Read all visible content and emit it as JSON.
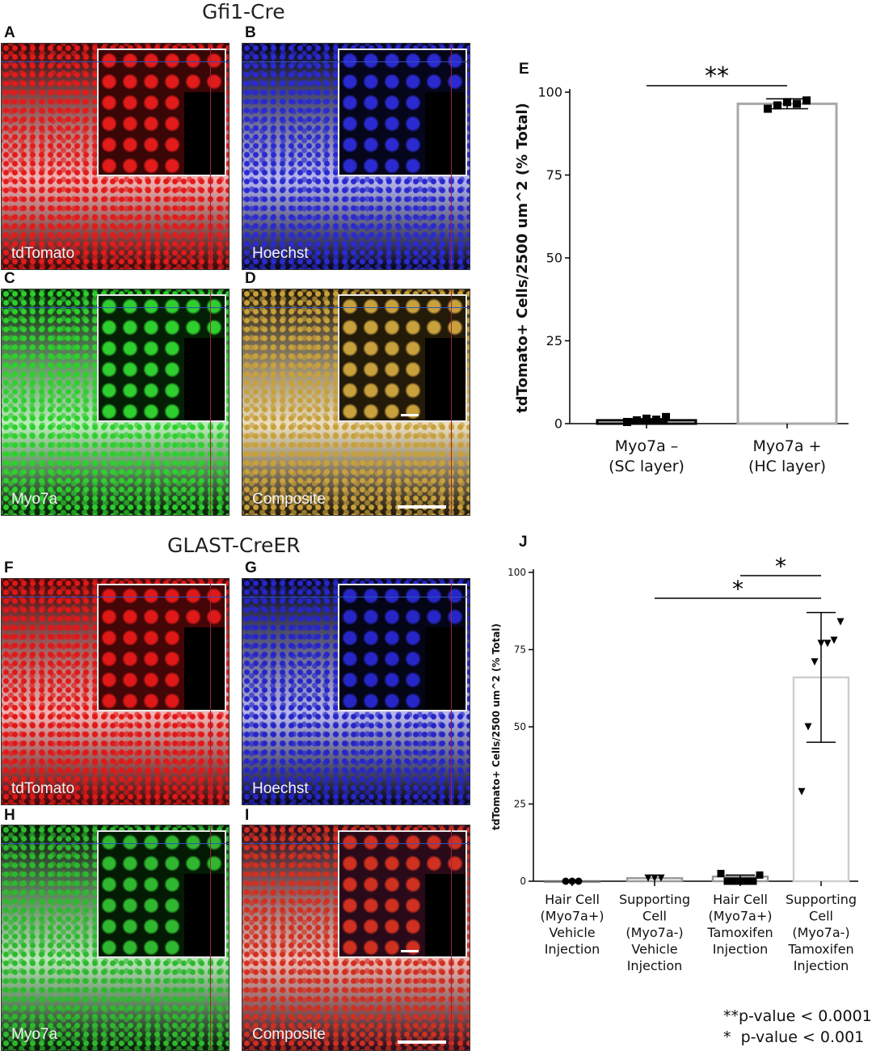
{
  "figure": {
    "top_title": "Gfi1-Cre",
    "bottom_title": "GLAST-CreER",
    "panels_top": [
      {
        "letter": "A",
        "label": "tdTomato",
        "color": "#e21b1b",
        "bg": "#3a0606",
        "scalebar": false
      },
      {
        "letter": "B",
        "label": "Hoechst",
        "color": "#2a2ad0",
        "bg": "#05051c",
        "scalebar": false
      },
      {
        "letter": "C",
        "label": "Myo7a",
        "color": "#2ecf2e",
        "bg": "#042004",
        "scalebar": false
      },
      {
        "letter": "D",
        "label": "Composite",
        "color": "#c8a03c",
        "bg": "#231a08",
        "scalebar": true
      }
    ],
    "panels_bottom": [
      {
        "letter": "F",
        "label": "tdTomato",
        "color": "#e01818",
        "bg": "#440606",
        "scalebar": false
      },
      {
        "letter": "G",
        "label": "Hoechst",
        "color": "#2626c8",
        "bg": "#050518",
        "scalebar": false
      },
      {
        "letter": "H",
        "label": "Myo7a",
        "color": "#2fb82f",
        "bg": "#031a03",
        "scalebar": false
      },
      {
        "letter": "I",
        "label": "Composite",
        "color": "#d03020",
        "bg": "#2a0a18",
        "scalebar": true
      }
    ],
    "pvalue_legend": [
      "**p-value < 0.0001",
      "*  p-value < 0.001"
    ]
  },
  "chart_data": [
    {
      "panel": "E",
      "type": "bar",
      "ylabel": "tdTomato+ Cells/2500 um^2 (% Total)",
      "ylim": [
        0,
        100
      ],
      "yticks": [
        0,
        25,
        50,
        75,
        100
      ],
      "categories": [
        [
          "Myo7a –",
          "(SC layer)"
        ],
        [
          "Myo7a +",
          "(HC layer)"
        ]
      ],
      "values": [
        1,
        96.5
      ],
      "errors": [
        0.5,
        1.5
      ],
      "points": [
        [
          0.5,
          1,
          1.5,
          1.2,
          2
        ],
        [
          95,
          96,
          97,
          96.5,
          97.5
        ]
      ],
      "bar_colors": [
        "#000000",
        "#a8a8a8"
      ],
      "significance": [
        {
          "from": 0,
          "to": 1,
          "label": "**"
        }
      ]
    },
    {
      "panel": "J",
      "type": "bar",
      "ylabel": "tdTomato+ Cells/2500 um^2 (% Total)",
      "ylim": [
        0,
        100
      ],
      "yticks": [
        0,
        25,
        50,
        75,
        100
      ],
      "categories": [
        [
          "Hair Cell",
          "(Myo7a+)",
          "Vehicle",
          "Injection"
        ],
        [
          "Supporting",
          "Cell",
          "(Myo7a-)",
          "Vehicle",
          "Injection"
        ],
        [
          "Hair Cell",
          "(Myo7a+)",
          "Tamoxifen",
          "Injection"
        ],
        [
          "Supporting",
          "Cell",
          "(Myo7a-)",
          "Tamoxifen",
          "Injection"
        ]
      ],
      "values": [
        0,
        1,
        1.5,
        66
      ],
      "errors": [
        0,
        0,
        0.5,
        21
      ],
      "points": [
        [
          0,
          0,
          0
        ],
        [
          1,
          1,
          1
        ],
        [
          2.5,
          0,
          0,
          0,
          0,
          0,
          2
        ],
        [
          29,
          50,
          71,
          77,
          77,
          78,
          84
        ]
      ],
      "markers": [
        "circle",
        "triangle-down",
        "square",
        "triangle-down"
      ],
      "bar_colors": [
        "#6e6e6e",
        "#9a9a9a",
        "#9a9a9a",
        "#cfcfcf"
      ],
      "significance": [
        {
          "from": 1,
          "to": 3,
          "label": "*"
        },
        {
          "from": 2,
          "to": 3,
          "label": "*"
        }
      ]
    }
  ]
}
